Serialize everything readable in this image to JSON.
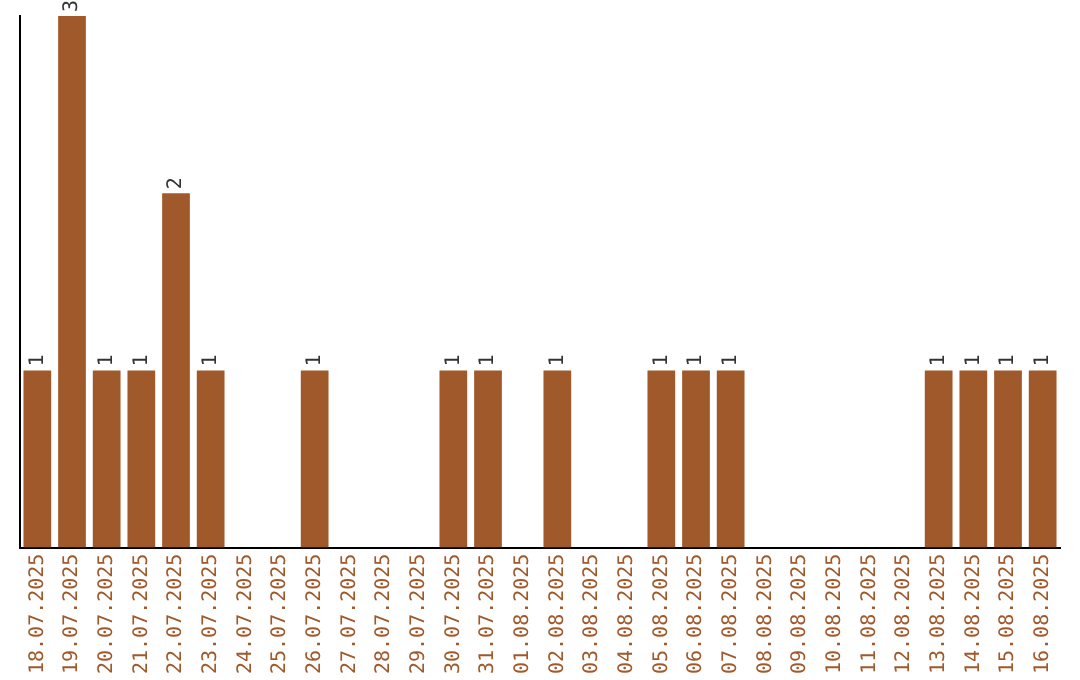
{
  "chart_data": {
    "type": "bar",
    "categories": [
      "18.07.2025",
      "19.07.2025",
      "20.07.2025",
      "21.07.2025",
      "22.07.2025",
      "23.07.2025",
      "24.07.2025",
      "25.07.2025",
      "26.07.2025",
      "27.07.2025",
      "28.07.2025",
      "29.07.2025",
      "30.07.2025",
      "31.07.2025",
      "01.08.2025",
      "02.08.2025",
      "03.08.2025",
      "04.08.2025",
      "05.08.2025",
      "06.08.2025",
      "07.08.2025",
      "08.08.2025",
      "09.08.2025",
      "10.08.2025",
      "11.08.2025",
      "12.08.2025",
      "13.08.2025",
      "14.08.2025",
      "15.08.2025",
      "16.08.2025"
    ],
    "values": [
      1,
      3,
      1,
      1,
      2,
      1,
      0,
      0,
      1,
      0,
      0,
      0,
      1,
      1,
      0,
      1,
      0,
      0,
      1,
      1,
      1,
      0,
      0,
      0,
      0,
      0,
      1,
      1,
      1,
      1
    ],
    "value_labels": [
      "1",
      "3",
      "1",
      "1",
      "2",
      "1",
      null,
      null,
      "1",
      null,
      null,
      null,
      "1",
      "1",
      null,
      "1",
      null,
      null,
      "1",
      "1",
      "1",
      null,
      null,
      null,
      null,
      null,
      "1",
      "1",
      "1",
      "1"
    ],
    "color": "#a0592b",
    "tick_labels": "x",
    "grid": false,
    "legend": false
  }
}
